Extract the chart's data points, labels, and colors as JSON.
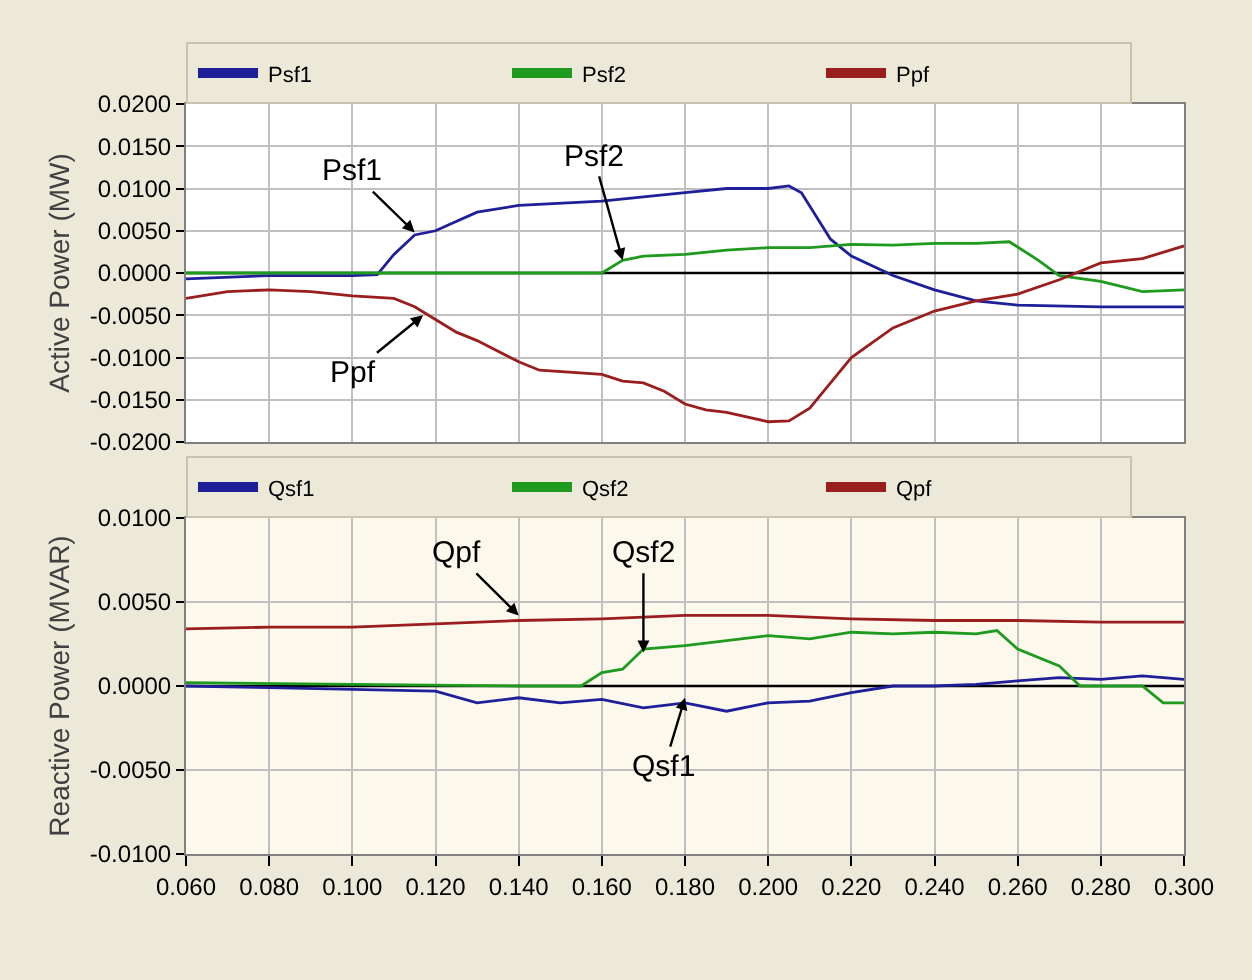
{
  "chart_data": [
    {
      "type": "line",
      "ylabel": "Active Power (MW)",
      "legend": "top",
      "grid": true,
      "tick_labels": "y",
      "xlim": [
        0.06,
        0.3
      ],
      "xticks": [
        {
          "value": 0.06,
          "label": null
        },
        {
          "value": 0.08,
          "label": null
        },
        {
          "value": 0.1,
          "label": null
        },
        {
          "value": 0.12,
          "label": null
        },
        {
          "value": 0.14,
          "label": null
        },
        {
          "value": 0.16,
          "label": null
        },
        {
          "value": 0.18,
          "label": null
        },
        {
          "value": 0.2,
          "label": null
        },
        {
          "value": 0.22,
          "label": null
        },
        {
          "value": 0.24,
          "label": null
        },
        {
          "value": 0.26,
          "label": null
        },
        {
          "value": 0.28,
          "label": null
        },
        {
          "value": 0.3,
          "label": null
        }
      ],
      "ylim": [
        -0.02,
        0.02
      ],
      "yticks": [
        {
          "value": -0.02,
          "label": "-0.0200"
        },
        {
          "value": -0.015,
          "label": "-0.0150"
        },
        {
          "value": -0.01,
          "label": "-0.0100"
        },
        {
          "value": -0.005,
          "label": "-0.0050"
        },
        {
          "value": 0,
          "label": "0.0000"
        },
        {
          "value": 0.005,
          "label": "0.0050"
        },
        {
          "value": 0.01,
          "label": "0.0100"
        },
        {
          "value": 0.015,
          "label": "0.0150"
        },
        {
          "value": 0.02,
          "label": "0.0200"
        }
      ],
      "ref_lines": [
        {
          "axis": "y",
          "value": 0,
          "color": "#000000"
        }
      ],
      "series": [
        {
          "name": "Psf1",
          "color": "#1f1f9a",
          "x": [
            0.06,
            0.08,
            0.1,
            0.106,
            0.11,
            0.115,
            0.12,
            0.13,
            0.14,
            0.16,
            0.17,
            0.18,
            0.19,
            0.2,
            0.205,
            0.208,
            0.215,
            0.22,
            0.23,
            0.24,
            0.25,
            0.26,
            0.28,
            0.3
          ],
          "values": [
            -0.0007,
            -0.0003,
            -0.0003,
            -0.0002,
            0.0022,
            0.0045,
            0.005,
            0.0072,
            0.008,
            0.0085,
            0.009,
            0.0095,
            0.01,
            0.01,
            0.0103,
            0.0095,
            0.004,
            0.002,
            -0.0003,
            -0.002,
            -0.0033,
            -0.0038,
            -0.004,
            -0.004
          ]
        },
        {
          "name": "Psf2",
          "color": "#1e9a1e",
          "x": [
            0.06,
            0.1,
            0.14,
            0.16,
            0.165,
            0.17,
            0.18,
            0.19,
            0.2,
            0.21,
            0.22,
            0.23,
            0.24,
            0.25,
            0.258,
            0.265,
            0.27,
            0.28,
            0.29,
            0.3
          ],
          "values": [
            0,
            0,
            0,
            0,
            0.0015,
            0.002,
            0.0022,
            0.0027,
            0.003,
            0.003,
            0.0034,
            0.0033,
            0.0035,
            0.0035,
            0.0037,
            0.0015,
            -0.0003,
            -0.001,
            -0.0022,
            -0.002
          ]
        },
        {
          "name": "Ppf",
          "color": "#9a1e1e",
          "x": [
            0.06,
            0.07,
            0.08,
            0.09,
            0.1,
            0.11,
            0.115,
            0.12,
            0.125,
            0.13,
            0.14,
            0.145,
            0.16,
            0.165,
            0.17,
            0.175,
            0.18,
            0.185,
            0.19,
            0.2,
            0.205,
            0.21,
            0.215,
            0.22,
            0.23,
            0.24,
            0.25,
            0.26,
            0.27,
            0.28,
            0.29,
            0.3
          ],
          "values": [
            -0.003,
            -0.0022,
            -0.002,
            -0.0022,
            -0.0027,
            -0.003,
            -0.004,
            -0.0055,
            -0.007,
            -0.008,
            -0.0105,
            -0.0115,
            -0.012,
            -0.0128,
            -0.013,
            -0.014,
            -0.0155,
            -0.0162,
            -0.0165,
            -0.0176,
            -0.0175,
            -0.016,
            -0.013,
            -0.01,
            -0.0065,
            -0.0045,
            -0.0033,
            -0.0025,
            -0.0008,
            0.0012,
            0.0017,
            0.0032
          ]
        }
      ],
      "annotations": [
        {
          "text": "Psf1",
          "x": 0.115,
          "y": 0.0048
        },
        {
          "text": "Psf2",
          "x": 0.165,
          "y": 0.0015
        },
        {
          "text": "Ppf",
          "x": 0.117,
          "y": -0.005
        }
      ]
    },
    {
      "type": "line",
      "ylabel": "Reactive Power (MVAR)",
      "legend": "top",
      "grid": true,
      "xlim": [
        0.06,
        0.3
      ],
      "xticks": [
        {
          "value": 0.06,
          "label": "0.060"
        },
        {
          "value": 0.08,
          "label": "0.080"
        },
        {
          "value": 0.1,
          "label": "0.100"
        },
        {
          "value": 0.12,
          "label": "0.120"
        },
        {
          "value": 0.14,
          "label": "0.140"
        },
        {
          "value": 0.16,
          "label": "0.160"
        },
        {
          "value": 0.18,
          "label": "0.180"
        },
        {
          "value": 0.2,
          "label": "0.200"
        },
        {
          "value": 0.22,
          "label": "0.220"
        },
        {
          "value": 0.24,
          "label": "0.240"
        },
        {
          "value": 0.26,
          "label": "0.260"
        },
        {
          "value": 0.28,
          "label": "0.280"
        },
        {
          "value": 0.3,
          "label": "0.300"
        }
      ],
      "ylim": [
        -0.01,
        0.01
      ],
      "yticks": [
        {
          "value": -0.01,
          "label": "-0.0100"
        },
        {
          "value": -0.005,
          "label": "-0.0050"
        },
        {
          "value": 0,
          "label": "0.0000"
        },
        {
          "value": 0.005,
          "label": "0.0050"
        },
        {
          "value": 0.01,
          "label": "0.0100"
        }
      ],
      "ref_lines": [
        {
          "axis": "y",
          "value": 0,
          "color": "#000000"
        }
      ],
      "series": [
        {
          "name": "Qsf1",
          "color": "#1f1f9a",
          "x": [
            0.06,
            0.08,
            0.1,
            0.12,
            0.13,
            0.14,
            0.15,
            0.16,
            0.17,
            0.18,
            0.19,
            0.2,
            0.21,
            0.22,
            0.23,
            0.24,
            0.25,
            0.26,
            0.27,
            0.28,
            0.29,
            0.3
          ],
          "values": [
            0,
            -0.0001,
            -0.0002,
            -0.0003,
            -0.001,
            -0.0007,
            -0.001,
            -0.0008,
            -0.0013,
            -0.001,
            -0.0015,
            -0.001,
            -0.0009,
            -0.0004,
            0,
            0,
            0.0001,
            0.0003,
            0.0005,
            0.0004,
            0.0006,
            0.0004
          ]
        },
        {
          "name": "Qsf2",
          "color": "#1e9a1e",
          "x": [
            0.06,
            0.1,
            0.14,
            0.155,
            0.16,
            0.165,
            0.17,
            0.18,
            0.19,
            0.2,
            0.21,
            0.22,
            0.23,
            0.24,
            0.25,
            0.255,
            0.26,
            0.27,
            0.275,
            0.28,
            0.29,
            0.295,
            0.3
          ],
          "values": [
            0.0002,
            0.0001,
            0,
            0,
            0.0008,
            0.001,
            0.0022,
            0.0024,
            0.0027,
            0.003,
            0.0028,
            0.0032,
            0.0031,
            0.0032,
            0.0031,
            0.0033,
            0.0022,
            0.0012,
            0,
            0,
            0,
            -0.001,
            -0.001
          ]
        },
        {
          "name": "Qpf",
          "color": "#9a1e1e",
          "x": [
            0.06,
            0.08,
            0.1,
            0.12,
            0.14,
            0.16,
            0.18,
            0.2,
            0.22,
            0.24,
            0.26,
            0.28,
            0.3
          ],
          "values": [
            0.0034,
            0.0035,
            0.0035,
            0.0037,
            0.0039,
            0.004,
            0.0042,
            0.0042,
            0.004,
            0.0039,
            0.0039,
            0.0038,
            0.0038
          ]
        }
      ],
      "annotations": [
        {
          "text": "Qpf",
          "x": 0.14,
          "y": 0.0042
        },
        {
          "text": "Qsf2",
          "x": 0.17,
          "y": 0.002
        },
        {
          "text": "Qsf1",
          "x": 0.18,
          "y": -0.0007
        }
      ]
    }
  ]
}
